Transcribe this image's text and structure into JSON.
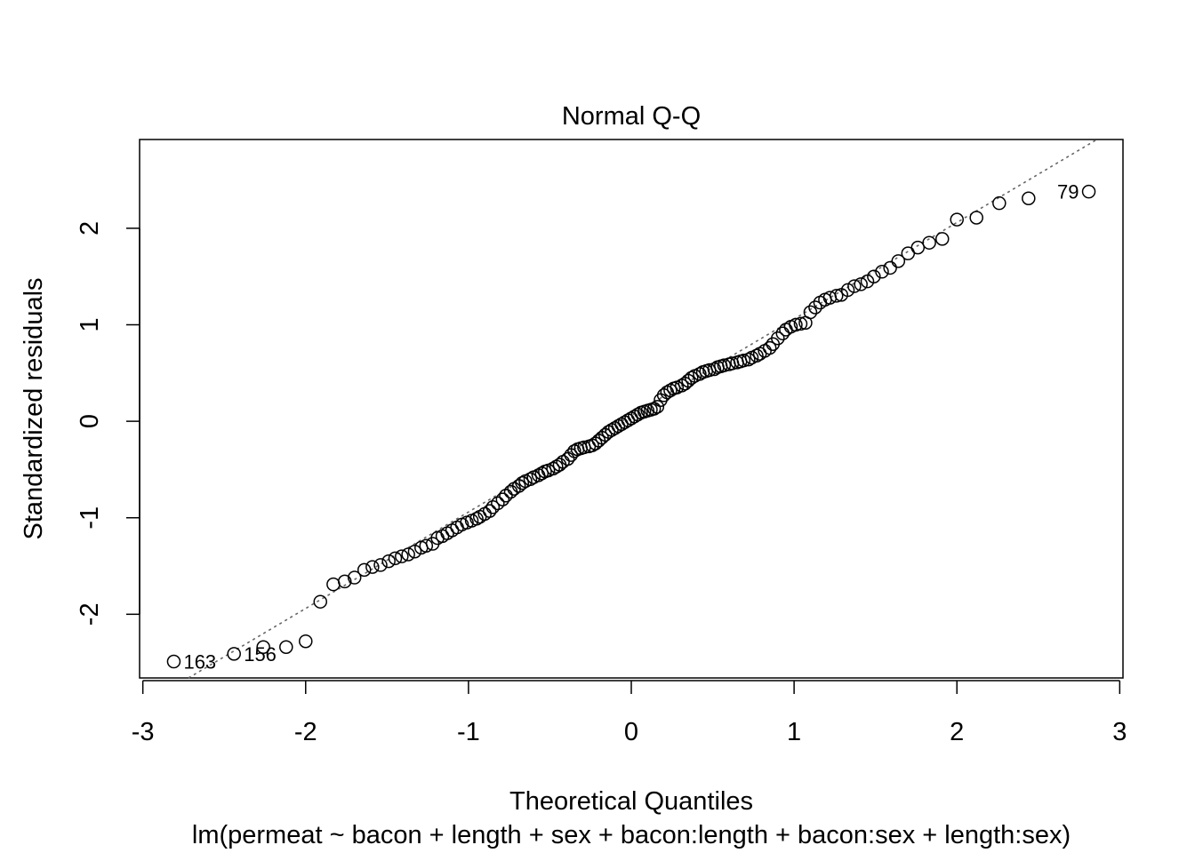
{
  "chart_data": {
    "type": "scatter",
    "title": "Normal Q-Q",
    "xlabel": "Theoretical Quantiles",
    "ylabel": "Standardized residuals",
    "subtitle": "lm(permeat ~ bacon + length + sex + bacon:length + bacon:sex + length:sex)",
    "xlim": [
      -3.02,
      3.02
    ],
    "ylim": [
      -2.66,
      2.92
    ],
    "x_ticks": [
      -3,
      -2,
      -1,
      0,
      1,
      2,
      3
    ],
    "y_ticks": [
      -2,
      -1,
      0,
      1,
      2
    ],
    "x_tick_labels": [
      "-3",
      "-2",
      "-1",
      "0",
      "1",
      "2",
      "3"
    ],
    "y_tick_labels": [
      "-2",
      "-1",
      "0",
      "1",
      "2"
    ],
    "grid": false,
    "reference_line": {
      "slope": 1.0,
      "intercept": 0.06,
      "style": "dotted",
      "color": "#666666"
    },
    "points": [
      [
        -2.81,
        -2.49
      ],
      [
        -2.44,
        -2.41
      ],
      [
        -2.26,
        -2.34
      ],
      [
        -2.12,
        -2.34
      ],
      [
        -2.0,
        -2.28
      ],
      [
        -1.91,
        -1.87
      ],
      [
        -1.83,
        -1.69
      ],
      [
        -1.76,
        -1.66
      ],
      [
        -1.7,
        -1.62
      ],
      [
        -1.64,
        -1.54
      ],
      [
        -1.59,
        -1.51
      ],
      [
        -1.54,
        -1.49
      ],
      [
        -1.49,
        -1.45
      ],
      [
        -1.45,
        -1.42
      ],
      [
        -1.41,
        -1.4
      ],
      [
        -1.37,
        -1.38
      ],
      [
        -1.33,
        -1.35
      ],
      [
        -1.29,
        -1.31
      ],
      [
        -1.26,
        -1.29
      ],
      [
        -1.22,
        -1.27
      ],
      [
        -1.19,
        -1.21
      ],
      [
        -1.16,
        -1.19
      ],
      [
        -1.13,
        -1.16
      ],
      [
        -1.1,
        -1.13
      ],
      [
        -1.07,
        -1.1
      ],
      [
        -1.04,
        -1.07
      ],
      [
        -1.01,
        -1.05
      ],
      [
        -0.98,
        -1.03
      ],
      [
        -0.95,
        -1.01
      ],
      [
        -0.93,
        -0.99
      ],
      [
        -0.9,
        -0.96
      ],
      [
        -0.87,
        -0.93
      ],
      [
        -0.85,
        -0.89
      ],
      [
        -0.82,
        -0.85
      ],
      [
        -0.79,
        -0.81
      ],
      [
        -0.77,
        -0.77
      ],
      [
        -0.74,
        -0.73
      ],
      [
        -0.72,
        -0.7
      ],
      [
        -0.69,
        -0.67
      ],
      [
        -0.67,
        -0.64
      ],
      [
        -0.65,
        -0.62
      ],
      [
        -0.62,
        -0.6
      ],
      [
        -0.6,
        -0.58
      ],
      [
        -0.57,
        -0.56
      ],
      [
        -0.55,
        -0.54
      ],
      [
        -0.53,
        -0.52
      ],
      [
        -0.51,
        -0.51
      ],
      [
        -0.48,
        -0.49
      ],
      [
        -0.46,
        -0.47
      ],
      [
        -0.44,
        -0.45
      ],
      [
        -0.42,
        -0.42
      ],
      [
        -0.39,
        -0.39
      ],
      [
        -0.37,
        -0.35
      ],
      [
        -0.35,
        -0.31
      ],
      [
        -0.33,
        -0.29
      ],
      [
        -0.31,
        -0.28
      ],
      [
        -0.29,
        -0.27
      ],
      [
        -0.26,
        -0.26
      ],
      [
        -0.24,
        -0.25
      ],
      [
        -0.22,
        -0.23
      ],
      [
        -0.2,
        -0.2
      ],
      [
        -0.18,
        -0.17
      ],
      [
        -0.16,
        -0.14
      ],
      [
        -0.14,
        -0.11
      ],
      [
        -0.12,
        -0.09
      ],
      [
        -0.1,
        -0.07
      ],
      [
        -0.08,
        -0.05
      ],
      [
        -0.06,
        -0.03
      ],
      [
        -0.04,
        -0.01
      ],
      [
        -0.02,
        0.01
      ],
      [
        0.0,
        0.03
      ],
      [
        0.02,
        0.05
      ],
      [
        0.04,
        0.07
      ],
      [
        0.06,
        0.09
      ],
      [
        0.08,
        0.1
      ],
      [
        0.1,
        0.11
      ],
      [
        0.12,
        0.12
      ],
      [
        0.14,
        0.13
      ],
      [
        0.16,
        0.15
      ],
      [
        0.18,
        0.22
      ],
      [
        0.2,
        0.27
      ],
      [
        0.22,
        0.3
      ],
      [
        0.24,
        0.32
      ],
      [
        0.26,
        0.34
      ],
      [
        0.28,
        0.35
      ],
      [
        0.31,
        0.37
      ],
      [
        0.33,
        0.39
      ],
      [
        0.35,
        0.42
      ],
      [
        0.37,
        0.45
      ],
      [
        0.39,
        0.47
      ],
      [
        0.42,
        0.49
      ],
      [
        0.44,
        0.51
      ],
      [
        0.46,
        0.52
      ],
      [
        0.48,
        0.53
      ],
      [
        0.51,
        0.54
      ],
      [
        0.53,
        0.56
      ],
      [
        0.55,
        0.57
      ],
      [
        0.57,
        0.58
      ],
      [
        0.6,
        0.59
      ],
      [
        0.62,
        0.6
      ],
      [
        0.65,
        0.61
      ],
      [
        0.67,
        0.62
      ],
      [
        0.69,
        0.63
      ],
      [
        0.72,
        0.64
      ],
      [
        0.74,
        0.66
      ],
      [
        0.77,
        0.68
      ],
      [
        0.79,
        0.7
      ],
      [
        0.82,
        0.73
      ],
      [
        0.85,
        0.76
      ],
      [
        0.87,
        0.8
      ],
      [
        0.9,
        0.86
      ],
      [
        0.93,
        0.91
      ],
      [
        0.95,
        0.95
      ],
      [
        0.98,
        0.98
      ],
      [
        1.01,
        1.0
      ],
      [
        1.04,
        1.01
      ],
      [
        1.07,
        1.02
      ],
      [
        1.1,
        1.13
      ],
      [
        1.13,
        1.18
      ],
      [
        1.16,
        1.23
      ],
      [
        1.19,
        1.26
      ],
      [
        1.22,
        1.28
      ],
      [
        1.26,
        1.3
      ],
      [
        1.29,
        1.31
      ],
      [
        1.33,
        1.36
      ],
      [
        1.37,
        1.4
      ],
      [
        1.41,
        1.42
      ],
      [
        1.45,
        1.45
      ],
      [
        1.49,
        1.5
      ],
      [
        1.54,
        1.55
      ],
      [
        1.59,
        1.59
      ],
      [
        1.64,
        1.66
      ],
      [
        1.7,
        1.74
      ],
      [
        1.76,
        1.8
      ],
      [
        1.83,
        1.85
      ],
      [
        1.91,
        1.89
      ],
      [
        2.0,
        2.09
      ],
      [
        2.12,
        2.11
      ],
      [
        2.26,
        2.26
      ],
      [
        2.44,
        2.31
      ],
      [
        2.81,
        2.38
      ]
    ],
    "annotations": [
      {
        "label": "163",
        "x": -2.81,
        "y": -2.49,
        "side": "right"
      },
      {
        "label": "156",
        "x": -2.44,
        "y": -2.41,
        "side": "right"
      },
      {
        "label": "79",
        "x": 2.81,
        "y": 2.38,
        "side": "left"
      }
    ]
  }
}
